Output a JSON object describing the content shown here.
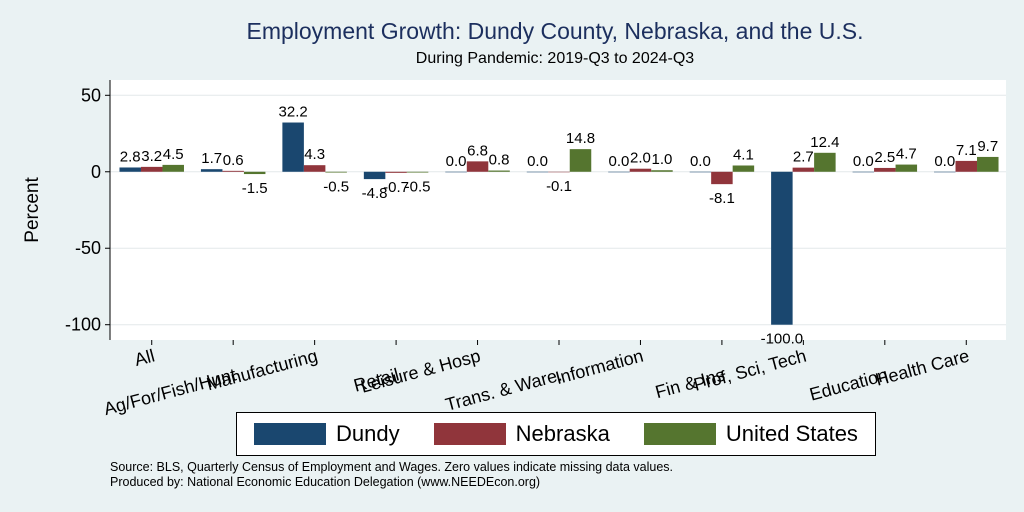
{
  "chart_data": {
    "type": "bar",
    "title": "Employment Growth: Dundy County, Nebraska, and the U.S.",
    "subtitle": "During Pandemic: 2019-Q3 to 2024-Q3",
    "ylabel": "Percent",
    "xlabel": "",
    "ylim": [
      -110,
      60
    ],
    "yticks": [
      50,
      0,
      -50,
      -100
    ],
    "grid": true,
    "legend_position": "bottom",
    "categories": [
      "All",
      "Ag/For/Fish/Hunt",
      "Manufacturing",
      "Retail",
      "Leisure & Hosp",
      "Trans. & Ware.",
      "Information",
      "Fin & Ins",
      "Prof, Sci, Tech",
      "Education",
      "Health Care"
    ],
    "series": [
      {
        "name": "Dundy",
        "color": "#1a476f",
        "values": [
          2.8,
          1.7,
          32.2,
          -4.8,
          0.0,
          0.0,
          0.0,
          0.0,
          -100.0,
          0.0,
          0.0
        ],
        "labels": [
          "2.8",
          "1.7",
          "32.2",
          "-4.8",
          "0.0",
          "0.0",
          "0.0",
          "0.0",
          "-100.0",
          "0.0",
          "0.0"
        ]
      },
      {
        "name": "Nebraska",
        "color": "#90353b",
        "values": [
          3.2,
          0.6,
          4.3,
          -0.7,
          6.8,
          -0.1,
          2.0,
          -8.1,
          2.7,
          2.5,
          7.1
        ],
        "labels": [
          "3.2",
          "0.6",
          "4.3",
          "-0.7",
          "6.8",
          "-0.1",
          "2.0",
          "-8.1",
          "2.7",
          "2.5",
          "7.1"
        ]
      },
      {
        "name": "United States",
        "color": "#55752f",
        "values": [
          4.5,
          -1.5,
          -0.5,
          -0.5,
          0.8,
          14.8,
          1.0,
          4.1,
          12.4,
          4.7,
          9.7
        ],
        "labels": [
          "4.5",
          "-1.5",
          "-0.5",
          "-0.5",
          "0.8",
          "14.8",
          "1.0",
          "4.1",
          "12.4",
          "4.7",
          "9.7"
        ]
      }
    ]
  },
  "footer": {
    "source": "Source: BLS, Quarterly Census of Employment and Wages. Zero values indicate missing data values.",
    "produced_by": "Produced by: National Economic Education Delegation (www.NEEDEcon.org)"
  },
  "colors": {
    "background": "#eaf2f3",
    "plot_background": "#ffffff",
    "title": "#1c2f5e"
  }
}
